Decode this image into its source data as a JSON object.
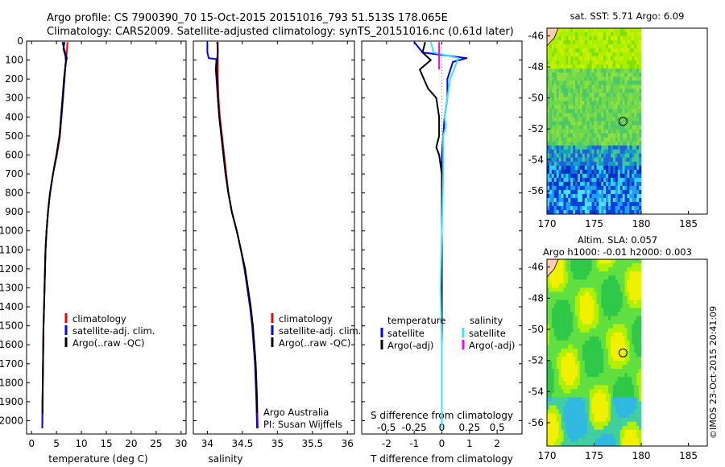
{
  "header": {
    "title_line1": "Argo profile: CS 7900390_70 15-Oct-2015 20151016_793 51.513S 178.065E",
    "title_line2": "Climatology: CARS2009. Satellite-adjusted climatology: synTS_20151016.nc (0.61d later)"
  },
  "watermark": "©IMOS 23-Oct-2015 20:41:09",
  "colors": {
    "climatology": "#ff0000",
    "satellite": "#0000ff",
    "argo": "#000000",
    "salinity_sat": "#33e6ff",
    "salinity_argo": "#ff00ff"
  },
  "chart_data": [
    {
      "id": "temperature",
      "type": "line",
      "xlabel": "temperature (deg C)",
      "ylabel": "",
      "xlim": [
        -1,
        31
      ],
      "ylim": [
        2070,
        0
      ],
      "xticks": [
        0,
        5,
        10,
        15,
        20,
        25,
        30
      ],
      "yticks": [
        0,
        100,
        200,
        300,
        400,
        500,
        600,
        700,
        800,
        900,
        1000,
        1100,
        1200,
        1300,
        1400,
        1500,
        1600,
        1700,
        1800,
        1900,
        2000
      ],
      "legend": [
        "climatology",
        "satellite-adj. clim.",
        "Argo(..raw -QC)"
      ],
      "series": [
        {
          "name": "climatology",
          "color": "#ff0000",
          "points": [
            [
              7.2,
              5
            ],
            [
              7.1,
              50
            ],
            [
              6.9,
              100
            ],
            [
              6.6,
              200
            ],
            [
              6.3,
              300
            ],
            [
              6.0,
              400
            ],
            [
              5.7,
              500
            ],
            [
              5.1,
              600
            ],
            [
              4.3,
              700
            ],
            [
              3.7,
              800
            ],
            [
              3.3,
              900
            ],
            [
              3.0,
              1000
            ],
            [
              2.8,
              1100
            ],
            [
              2.7,
              1200
            ],
            [
              2.6,
              1300
            ],
            [
              2.5,
              1400
            ],
            [
              2.4,
              1500
            ],
            [
              2.35,
              1600
            ],
            [
              2.3,
              1700
            ],
            [
              2.25,
              1800
            ],
            [
              2.2,
              1900
            ],
            [
              2.15,
              2040
            ]
          ]
        },
        {
          "name": "satellite-adj. clim.",
          "color": "#0000ff",
          "points": [
            [
              6.2,
              5
            ],
            [
              6.5,
              40
            ],
            [
              7.1,
              90
            ],
            [
              6.8,
              120
            ],
            [
              6.6,
              200
            ],
            [
              6.3,
              300
            ],
            [
              6.0,
              400
            ],
            [
              5.6,
              500
            ],
            [
              5.0,
              600
            ],
            [
              4.3,
              700
            ],
            [
              3.7,
              800
            ],
            [
              3.3,
              900
            ],
            [
              3.0,
              1000
            ],
            [
              2.8,
              1100
            ],
            [
              2.7,
              1200
            ],
            [
              2.6,
              1300
            ],
            [
              2.5,
              1400
            ],
            [
              2.4,
              1500
            ],
            [
              2.35,
              1600
            ],
            [
              2.3,
              1700
            ],
            [
              2.25,
              1800
            ],
            [
              2.2,
              1900
            ],
            [
              2.15,
              2040
            ]
          ]
        },
        {
          "name": "Argo(..raw -QC)",
          "color": "#000000",
          "points": [
            [
              6.6,
              5
            ],
            [
              6.4,
              40
            ],
            [
              6.8,
              80
            ],
            [
              6.9,
              110
            ],
            [
              6.5,
              200
            ],
            [
              6.2,
              300
            ],
            [
              5.9,
              400
            ],
            [
              5.6,
              500
            ],
            [
              5.0,
              600
            ],
            [
              4.3,
              700
            ],
            [
              3.7,
              800
            ],
            [
              3.3,
              900
            ],
            [
              3.0,
              1000
            ],
            [
              2.8,
              1100
            ],
            [
              2.7,
              1200
            ],
            [
              2.6,
              1300
            ],
            [
              2.5,
              1400
            ],
            [
              2.4,
              1500
            ],
            [
              2.35,
              1600
            ],
            [
              2.3,
              1700
            ],
            [
              2.25,
              1800
            ],
            [
              2.2,
              1900
            ],
            [
              2.2,
              1960
            ]
          ]
        }
      ]
    },
    {
      "id": "salinity",
      "type": "line",
      "xlabel": "salinity",
      "ylabel": "",
      "xlim": [
        33.8,
        36.1
      ],
      "ylim": [
        2070,
        0
      ],
      "xticks": [
        34,
        34.5,
        35,
        35.5,
        36
      ],
      "xtick_labels": [
        "34",
        "34.5",
        "35",
        "35.5",
        "36"
      ],
      "legend": [
        "climatology",
        "satellite-adj. clim.",
        "Argo(..raw -QC)"
      ],
      "annotation": [
        "Argo Australia",
        "PI: Susan Wijffels"
      ],
      "series": [
        {
          "name": "climatology",
          "color": "#ff0000",
          "points": [
            [
              34.15,
              5
            ],
            [
              34.15,
              100
            ],
            [
              34.15,
              200
            ],
            [
              34.16,
              300
            ],
            [
              34.18,
              400
            ],
            [
              34.21,
              500
            ],
            [
              34.24,
              600
            ],
            [
              34.27,
              700
            ],
            [
              34.3,
              800
            ],
            [
              34.35,
              900
            ],
            [
              34.42,
              1000
            ],
            [
              34.48,
              1100
            ],
            [
              34.53,
              1200
            ],
            [
              34.57,
              1300
            ],
            [
              34.61,
              1400
            ],
            [
              34.65,
              1500
            ],
            [
              34.67,
              1600
            ],
            [
              34.69,
              1700
            ],
            [
              34.7,
              1800
            ],
            [
              34.71,
              1900
            ],
            [
              34.72,
              2040
            ]
          ]
        },
        {
          "name": "satellite-adj. clim.",
          "color": "#0000ff",
          "points": [
            [
              34.0,
              5
            ],
            [
              34.0,
              60
            ],
            [
              34.02,
              90
            ],
            [
              34.13,
              95
            ],
            [
              34.12,
              150
            ],
            [
              34.13,
              200
            ],
            [
              34.15,
              300
            ],
            [
              34.17,
              400
            ],
            [
              34.2,
              500
            ],
            [
              34.23,
              600
            ],
            [
              34.26,
              700
            ],
            [
              34.3,
              800
            ],
            [
              34.35,
              900
            ],
            [
              34.42,
              1000
            ],
            [
              34.48,
              1100
            ],
            [
              34.53,
              1200
            ],
            [
              34.57,
              1300
            ],
            [
              34.61,
              1400
            ],
            [
              34.64,
              1500
            ],
            [
              34.66,
              1600
            ],
            [
              34.68,
              1700
            ],
            [
              34.69,
              1800
            ],
            [
              34.7,
              1900
            ],
            [
              34.71,
              2040
            ]
          ]
        },
        {
          "name": "Argo(..raw -QC)",
          "color": "#000000",
          "points": [
            [
              34.14,
              5
            ],
            [
              34.15,
              50
            ],
            [
              34.14,
              100
            ],
            [
              34.13,
              150
            ],
            [
              34.14,
              200
            ],
            [
              34.15,
              300
            ],
            [
              34.17,
              400
            ],
            [
              34.2,
              500
            ],
            [
              34.23,
              600
            ],
            [
              34.26,
              700
            ],
            [
              34.3,
              800
            ],
            [
              34.35,
              900
            ],
            [
              34.42,
              1000
            ],
            [
              34.48,
              1100
            ],
            [
              34.54,
              1200
            ],
            [
              34.58,
              1300
            ],
            [
              34.62,
              1400
            ],
            [
              34.65,
              1500
            ],
            [
              34.67,
              1600
            ],
            [
              34.69,
              1700
            ],
            [
              34.7,
              1800
            ],
            [
              34.71,
              1900
            ],
            [
              34.71,
              1960
            ]
          ]
        }
      ]
    },
    {
      "id": "differences",
      "type": "line",
      "xlabel": "T difference from climatology",
      "xlabel2": "S difference from climatology",
      "xlim": [
        -2.9,
        2.9
      ],
      "ylim": [
        2070,
        0
      ],
      "xticks": [
        -2,
        -1,
        0,
        1,
        2
      ],
      "xticks2": [
        -0.5,
        -0.25,
        0,
        0.25,
        0.5
      ],
      "xticks2_labels": [
        "-0.5",
        "-0.25",
        "0",
        "0.25",
        "0.5"
      ],
      "legend_left_title": "temperature",
      "legend_right_title": "salinity",
      "legend_left": [
        "satellite",
        "Argo(-adj)"
      ],
      "legend_right": [
        "satellite",
        "Argo(-adj)"
      ],
      "series": [
        {
          "name": "T satellite",
          "color": "#0000ff",
          "points": [
            [
              -1.0,
              5
            ],
            [
              -0.7,
              60
            ],
            [
              0.9,
              90
            ],
            [
              0.4,
              110
            ],
            [
              0.2,
              200
            ],
            [
              0.2,
              300
            ],
            [
              0.1,
              400
            ],
            [
              0.05,
              500
            ],
            [
              0.0,
              600
            ],
            [
              0.0,
              800
            ],
            [
              0.0,
              1000
            ],
            [
              0.0,
              1500
            ],
            [
              0.0,
              2040
            ]
          ]
        },
        {
          "name": "T Argo(-adj)",
          "color": "#000000",
          "points": [
            [
              -0.6,
              5
            ],
            [
              -0.7,
              60
            ],
            [
              -0.4,
              100
            ],
            [
              -0.8,
              150
            ],
            [
              -0.5,
              250
            ],
            [
              -0.2,
              300
            ],
            [
              -0.1,
              400
            ],
            [
              -0.1,
              500
            ],
            [
              -0.2,
              560
            ],
            [
              -0.1,
              600
            ],
            [
              0.0,
              700
            ],
            [
              0.0,
              900
            ],
            [
              0.0,
              1200
            ],
            [
              0.0,
              1600
            ],
            [
              0.0,
              1960
            ]
          ]
        },
        {
          "name": "S satellite",
          "color": "#33e6ff",
          "points": [
            [
              -0.4,
              5
            ],
            [
              -0.3,
              60
            ],
            [
              0.6,
              90
            ],
            [
              0.3,
              200
            ],
            [
              0.2,
              300
            ],
            [
              0.1,
              400
            ],
            [
              0.15,
              450
            ],
            [
              0.05,
              500
            ],
            [
              0.05,
              700
            ],
            [
              0.0,
              1000
            ],
            [
              -0.05,
              1300
            ],
            [
              0.0,
              1600
            ],
            [
              0.0,
              2040
            ]
          ]
        },
        {
          "name": "S Argo(-adj)",
          "color": "#ff00ff",
          "points": [
            [
              -0.1,
              5
            ],
            [
              -0.1,
              100
            ],
            [
              -0.1,
              150
            ]
          ]
        }
      ]
    }
  ],
  "maps": [
    {
      "id": "sst",
      "title_lines": [
        "sat. SST: 5.71  Argo: 6.09"
      ],
      "xlim": [
        170,
        187
      ],
      "ylim": [
        -57.5,
        -45.5
      ],
      "xticks": [
        170,
        175,
        180,
        185
      ],
      "yticks": [
        -46,
        -48,
        -50,
        -52,
        -54,
        -56
      ],
      "argo_marker": [
        178.065,
        -51.513
      ],
      "colorscheme": "sst"
    },
    {
      "id": "sla",
      "title_lines": [
        "Altim. SLA: 0.057",
        "Argo h1000: -0.01 h2000: 0.003"
      ],
      "xlim": [
        170,
        187
      ],
      "ylim": [
        -57.5,
        -45.5
      ],
      "xticks": [
        170,
        175,
        180,
        185
      ],
      "yticks": [
        -46,
        -48,
        -50,
        -52,
        -54,
        -56
      ],
      "argo_marker": [
        178.065,
        -51.513
      ],
      "colorscheme": "sla"
    }
  ]
}
